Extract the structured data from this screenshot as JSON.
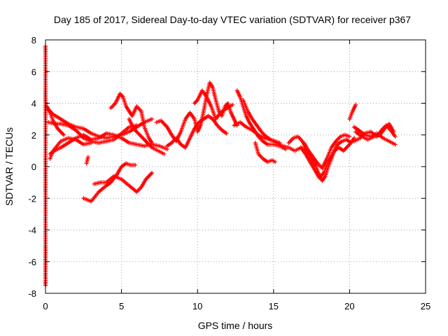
{
  "chart_data": {
    "type": "scatter",
    "title": "Day 185 of 2017, Sidereal Day-to-day VTEC variation (SDTVAR) for receiver p367",
    "xlabel": "GPS time / hours",
    "ylabel": "SDTVAR / TECUs",
    "xlim": [
      0,
      25
    ],
    "ylim": [
      -8,
      8
    ],
    "xticks": [
      0,
      5,
      10,
      15,
      20,
      25
    ],
    "yticks": [
      -8,
      -6,
      -4,
      -2,
      0,
      2,
      4,
      6,
      8
    ],
    "grid": true,
    "marker": "plus",
    "series": [
      {
        "name": "SDTVAR",
        "color": "#ff0000",
        "tracks": [
          [
            [
              0.0,
              7.6
            ],
            [
              0.0,
              1.2
            ],
            [
              0.0,
              -7.3
            ],
            [
              0.0,
              -7.5
            ]
          ],
          [
            [
              0.2,
              3.6
            ],
            [
              0.5,
              3.3
            ],
            [
              1.0,
              3.0
            ],
            [
              1.5,
              2.7
            ],
            [
              2.0,
              2.5
            ],
            [
              2.5,
              2.4
            ],
            [
              3.0,
              2.1
            ],
            [
              3.5,
              1.9
            ],
            [
              4.0,
              1.8
            ],
            [
              4.5,
              1.9
            ],
            [
              5.0,
              2.0
            ],
            [
              5.5,
              2.2
            ],
            [
              6.0,
              2.5
            ],
            [
              6.5,
              2.8
            ],
            [
              7.0,
              3.0
            ]
          ],
          [
            [
              0.2,
              2.8
            ],
            [
              0.6,
              2.7
            ],
            [
              1.0,
              2.7
            ],
            [
              1.5,
              2.6
            ],
            [
              2.0,
              2.3
            ],
            [
              2.5,
              1.8
            ],
            [
              3.0,
              1.6
            ],
            [
              3.5,
              1.5
            ],
            [
              4.0,
              1.6
            ],
            [
              4.5,
              1.7
            ],
            [
              5.0,
              2.1
            ],
            [
              5.5,
              2.5
            ],
            [
              6.0,
              2.6
            ]
          ],
          [
            [
              0.3,
              0.8
            ],
            [
              0.6,
              1.0
            ],
            [
              1.0,
              1.2
            ],
            [
              1.5,
              1.5
            ],
            [
              2.0,
              1.8
            ],
            [
              2.5,
              2.0
            ],
            [
              3.0,
              1.7
            ],
            [
              3.5,
              1.8
            ],
            [
              4.0,
              2.1
            ],
            [
              4.5,
              2.0
            ],
            [
              5.0,
              1.8
            ],
            [
              5.5,
              1.5
            ],
            [
              6.0,
              1.4
            ],
            [
              6.5,
              1.3
            ],
            [
              7.0,
              1.4
            ],
            [
              7.5,
              1.3
            ],
            [
              8.0,
              1.1
            ]
          ],
          [
            [
              0.3,
              0.5
            ],
            [
              0.5,
              1.0
            ],
            [
              1.0,
              1.6
            ],
            [
              1.5,
              1.8
            ],
            [
              2.0,
              1.7
            ],
            [
              2.5,
              1.4
            ],
            [
              3.0,
              1.5
            ]
          ],
          [
            [
              0.1,
              3.8
            ],
            [
              0.3,
              3.4
            ],
            [
              0.5,
              2.9
            ],
            [
              0.8,
              2.4
            ],
            [
              1.2,
              2.0
            ]
          ],
          [
            [
              2.5,
              -2.0
            ],
            [
              3.0,
              -2.2
            ],
            [
              3.5,
              -1.6
            ],
            [
              4.0,
              -1.2
            ],
            [
              4.3,
              -1.0
            ],
            [
              4.7,
              -0.5
            ],
            [
              5.0,
              0.0
            ],
            [
              5.3,
              0.2
            ],
            [
              5.6,
              0.1
            ],
            [
              5.9,
              0.1
            ]
          ],
          [
            [
              2.7,
              0.2
            ],
            [
              2.8,
              0.6
            ]
          ],
          [
            [
              3.2,
              -1.1
            ],
            [
              3.6,
              -1.0
            ],
            [
              4.0,
              -1.0
            ],
            [
              4.5,
              -0.6
            ],
            [
              5.0,
              -0.8
            ],
            [
              5.5,
              -1.2
            ],
            [
              6.0,
              -1.6
            ],
            [
              6.3,
              -1.3
            ],
            [
              6.6,
              -0.8
            ],
            [
              7.0,
              -0.4
            ]
          ],
          [
            [
              4.3,
              3.7
            ],
            [
              4.6,
              4.0
            ],
            [
              4.9,
              4.6
            ],
            [
              5.1,
              4.4
            ],
            [
              5.3,
              3.8
            ],
            [
              5.5,
              3.5
            ],
            [
              5.7,
              3.2
            ],
            [
              6.0,
              3.8
            ],
            [
              6.3,
              3.5
            ],
            [
              6.5,
              2.5
            ],
            [
              6.8,
              1.8
            ],
            [
              7.0,
              1.5
            ]
          ],
          [
            [
              5.5,
              3.0
            ],
            [
              5.8,
              2.4
            ],
            [
              6.2,
              2.0
            ],
            [
              6.6,
              1.6
            ],
            [
              7.0,
              1.2
            ],
            [
              7.4,
              1.0
            ],
            [
              7.8,
              0.8
            ]
          ],
          [
            [
              7.3,
              2.8
            ],
            [
              7.6,
              2.9
            ],
            [
              8.0,
              2.5
            ],
            [
              8.3,
              2.0
            ],
            [
              8.6,
              1.6
            ],
            [
              8.9,
              2.2
            ],
            [
              9.2,
              3.0
            ],
            [
              9.5,
              3.4
            ],
            [
              9.8,
              3.0
            ],
            [
              10.0,
              2.2
            ],
            [
              10.2,
              2.6
            ],
            [
              10.4,
              3.5
            ],
            [
              10.6,
              4.5
            ],
            [
              10.8,
              5.3
            ],
            [
              11.0,
              5.0
            ],
            [
              11.2,
              4.2
            ],
            [
              11.4,
              3.5
            ],
            [
              11.6,
              3.2
            ],
            [
              11.8,
              3.8
            ],
            [
              12.0,
              4.0
            ],
            [
              12.2,
              3.4
            ],
            [
              12.4,
              3.0
            ],
            [
              12.6,
              2.6
            ]
          ],
          [
            [
              8.0,
              1.3
            ],
            [
              8.3,
              1.5
            ],
            [
              8.6,
              1.8
            ],
            [
              8.9,
              1.4
            ],
            [
              9.2,
              1.2
            ],
            [
              9.5,
              1.8
            ],
            [
              9.8,
              2.4
            ],
            [
              10.1,
              2.8
            ],
            [
              10.4,
              3.0
            ],
            [
              10.7,
              3.2
            ],
            [
              11.0,
              3.0
            ],
            [
              11.3,
              2.6
            ],
            [
              11.6,
              2.3
            ],
            [
              11.9,
              2.1
            ]
          ],
          [
            [
              9.8,
              4.0
            ],
            [
              10.0,
              4.2
            ],
            [
              10.3,
              4.8
            ],
            [
              10.6,
              4.4
            ],
            [
              10.9,
              3.8
            ],
            [
              11.2,
              3.0
            ],
            [
              11.5,
              3.4
            ],
            [
              11.8,
              3.6
            ],
            [
              12.1,
              3.8
            ],
            [
              12.3,
              3.9
            ]
          ],
          [
            [
              12.6,
              4.8
            ],
            [
              12.8,
              4.4
            ],
            [
              13.0,
              3.8
            ],
            [
              13.2,
              3.2
            ],
            [
              13.4,
              2.8
            ],
            [
              13.6,
              2.5
            ],
            [
              13.8,
              2.2
            ],
            [
              14.0,
              1.9
            ],
            [
              14.3,
              1.6
            ],
            [
              14.6,
              1.4
            ],
            [
              15.0,
              1.4
            ],
            [
              15.4,
              1.3
            ],
            [
              15.8,
              1.1
            ]
          ],
          [
            [
              13.0,
              4.2
            ],
            [
              13.3,
              3.5
            ],
            [
              13.6,
              3.0
            ],
            [
              13.9,
              2.6
            ],
            [
              14.2,
              2.2
            ],
            [
              14.5,
              1.9
            ],
            [
              14.8,
              1.7
            ],
            [
              15.1,
              1.6
            ],
            [
              15.4,
              1.5
            ]
          ],
          [
            [
              12.4,
              2.6
            ],
            [
              12.8,
              2.8
            ],
            [
              13.2,
              2.5
            ],
            [
              13.6,
              2.3
            ],
            [
              14.0,
              2.0
            ],
            [
              14.4,
              1.8
            ],
            [
              14.8,
              1.7
            ],
            [
              15.2,
              1.5
            ],
            [
              15.6,
              1.3
            ],
            [
              16.0,
              1.2
            ],
            [
              16.4,
              1.0
            ],
            [
              16.8,
              1.2
            ],
            [
              17.2,
              1.0
            ]
          ],
          [
            [
              13.8,
              1.5
            ],
            [
              14.0,
              0.8
            ],
            [
              14.3,
              0.5
            ],
            [
              14.6,
              0.3
            ],
            [
              14.9,
              0.4
            ],
            [
              15.1,
              0.3
            ]
          ],
          [
            [
              16.0,
              1.5
            ],
            [
              16.3,
              1.8
            ],
            [
              16.6,
              1.9
            ],
            [
              16.9,
              1.6
            ],
            [
              17.2,
              1.0
            ],
            [
              17.5,
              0.5
            ],
            [
              17.8,
              0.0
            ],
            [
              18.0,
              -0.5
            ],
            [
              18.2,
              -0.9
            ],
            [
              18.4,
              -0.6
            ],
            [
              18.6,
              0.0
            ],
            [
              18.8,
              0.5
            ],
            [
              19.0,
              1.0
            ],
            [
              19.3,
              1.2
            ],
            [
              19.6,
              1.0
            ],
            [
              20.0,
              1.4
            ],
            [
              20.3,
              1.8
            ]
          ],
          [
            [
              16.8,
              1.2
            ],
            [
              17.1,
              0.8
            ],
            [
              17.4,
              0.3
            ],
            [
              17.7,
              -0.2
            ],
            [
              18.0,
              -0.7
            ],
            [
              18.3,
              -0.4
            ],
            [
              18.6,
              0.3
            ],
            [
              18.9,
              0.8
            ],
            [
              19.2,
              1.4
            ],
            [
              19.5,
              1.6
            ],
            [
              19.8,
              1.7
            ],
            [
              20.1,
              1.5
            ]
          ],
          [
            [
              17.0,
              1.5
            ],
            [
              17.3,
              1.0
            ],
            [
              17.6,
              0.6
            ],
            [
              17.9,
              0.2
            ],
            [
              18.2,
              -0.1
            ],
            [
              18.5,
              0.5
            ],
            [
              18.8,
              1.2
            ],
            [
              19.1,
              1.6
            ],
            [
              19.4,
              1.9
            ],
            [
              19.7,
              2.0
            ],
            [
              20.0,
              1.9
            ]
          ],
          [
            [
              20.0,
              3.0
            ],
            [
              20.2,
              3.5
            ],
            [
              20.4,
              3.9
            ]
          ],
          [
            [
              20.3,
              2.5
            ],
            [
              20.6,
              2.3
            ],
            [
              21.0,
              2.0
            ],
            [
              21.4,
              1.9
            ],
            [
              21.8,
              2.1
            ],
            [
              22.2,
              1.8
            ],
            [
              22.6,
              1.6
            ],
            [
              23.0,
              1.4
            ]
          ],
          [
            [
              20.3,
              1.6
            ],
            [
              20.7,
              1.8
            ],
            [
              21.0,
              2.1
            ],
            [
              21.4,
              2.2
            ],
            [
              21.8,
              1.9
            ],
            [
              22.1,
              2.3
            ],
            [
              22.4,
              2.6
            ],
            [
              22.7,
              2.3
            ],
            [
              23.0,
              1.9
            ]
          ],
          [
            [
              20.4,
              2.2
            ],
            [
              20.8,
              1.9
            ],
            [
              21.2,
              1.7
            ],
            [
              21.6,
              1.9
            ],
            [
              22.0,
              2.0
            ],
            [
              22.3,
              2.4
            ],
            [
              22.6,
              2.7
            ],
            [
              22.9,
              2.2
            ]
          ]
        ]
      }
    ]
  }
}
